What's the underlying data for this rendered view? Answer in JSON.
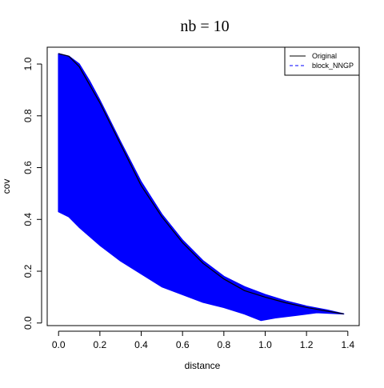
{
  "chart_data": {
    "type": "scatter",
    "title": "nb  =  10",
    "xlabel": "distance",
    "ylabel": "cov",
    "xlim": [
      -0.055,
      1.455
    ],
    "ylim": [
      -0.01,
      1.065
    ],
    "xticks": [
      "0.0",
      "0.2",
      "0.4",
      "0.6",
      "0.8",
      "1.0",
      "1.2",
      "1.4"
    ],
    "yticks": [
      "0.0",
      "0.2",
      "0.4",
      "0.6",
      "0.8",
      "1.0"
    ],
    "grid": false,
    "legend": {
      "position": "top-right",
      "entries": [
        {
          "label": "Original",
          "color": "#000000",
          "style": "solid"
        },
        {
          "label": "block_NNGP",
          "color": "#0000ff",
          "style": "dashed"
        }
      ]
    },
    "series": [
      {
        "name": "Original",
        "type": "line",
        "color": "#000000",
        "x": [
          0.0,
          0.05,
          0.1,
          0.15,
          0.2,
          0.3,
          0.4,
          0.5,
          0.6,
          0.7,
          0.8,
          0.9,
          1.0,
          1.1,
          1.2,
          1.3,
          1.38
        ],
        "y": [
          1.04,
          1.03,
          0.99,
          0.92,
          0.85,
          0.69,
          0.53,
          0.41,
          0.31,
          0.23,
          0.17,
          0.125,
          0.1,
          0.078,
          0.06,
          0.046,
          0.035
        ]
      },
      {
        "name": "block_NNGP",
        "type": "band",
        "color": "#0000ff",
        "upper_x": [
          0.0,
          0.05,
          0.1,
          0.15,
          0.2,
          0.3,
          0.4,
          0.5,
          0.6,
          0.7,
          0.8,
          0.9,
          1.0,
          1.1,
          1.2,
          1.3,
          1.38
        ],
        "upper_y": [
          1.04,
          1.03,
          1.0,
          0.935,
          0.86,
          0.7,
          0.545,
          0.42,
          0.32,
          0.24,
          0.18,
          0.14,
          0.11,
          0.085,
          0.065,
          0.05,
          0.035
        ],
        "lower_x": [
          0.0,
          0.05,
          0.1,
          0.2,
          0.3,
          0.4,
          0.5,
          0.6,
          0.7,
          0.8,
          0.9,
          0.98,
          1.05,
          1.15,
          1.25,
          1.38
        ],
        "lower_y": [
          0.43,
          0.41,
          0.37,
          0.3,
          0.24,
          0.19,
          0.14,
          0.11,
          0.08,
          0.06,
          0.035,
          0.01,
          0.02,
          0.03,
          0.04,
          0.035
        ]
      }
    ]
  }
}
